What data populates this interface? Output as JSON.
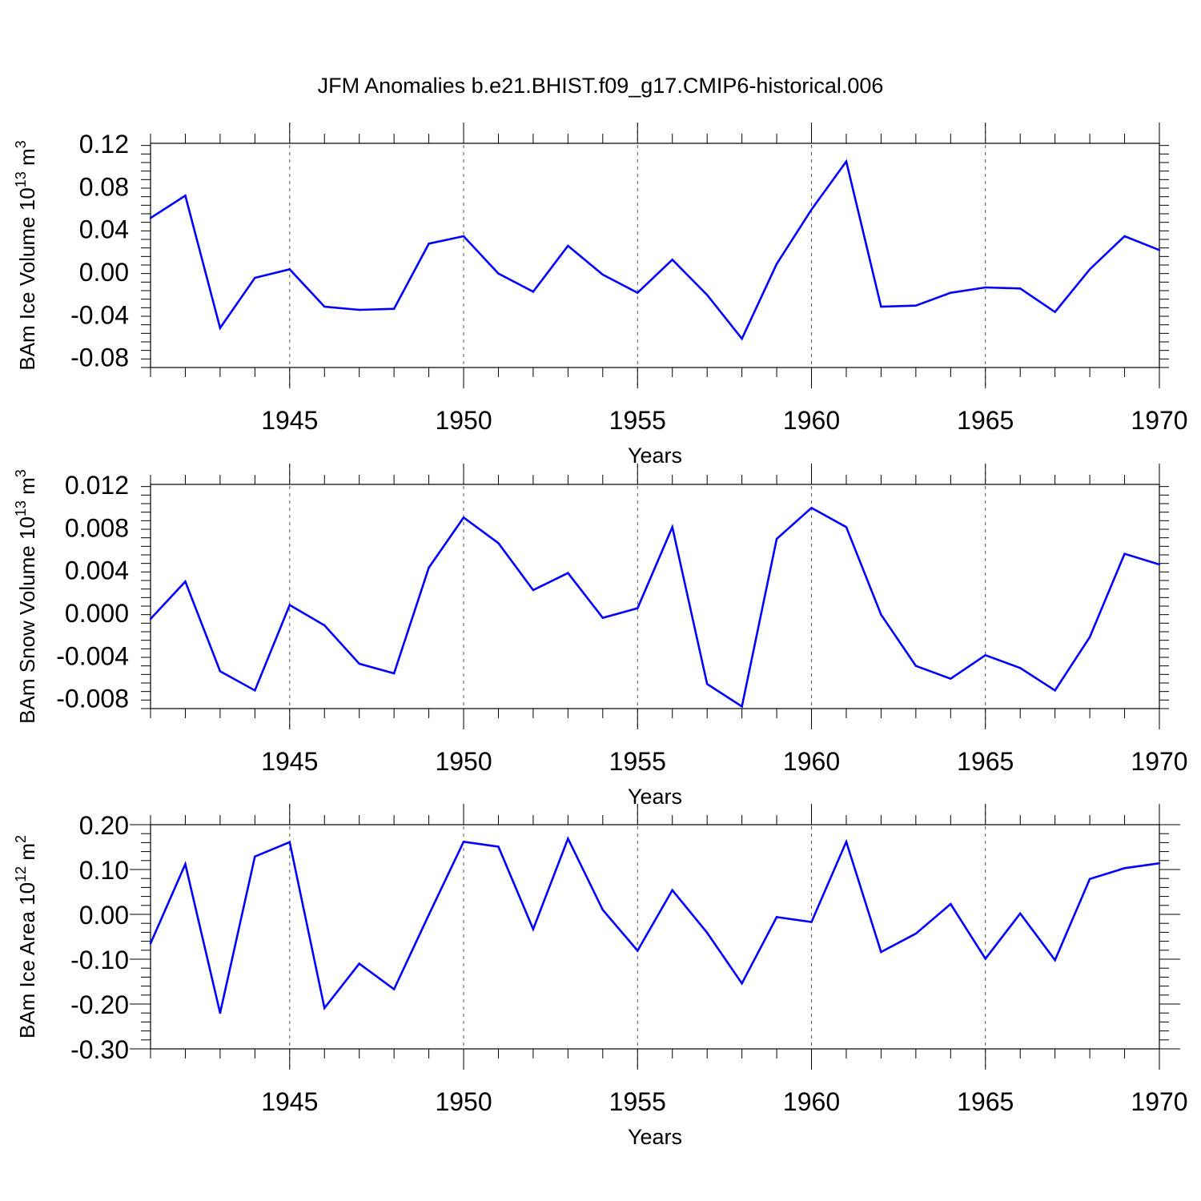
{
  "title": "JFM Anomalies b.e21.BHIST.f09_g17.CMIP6-historical.006",
  "line_color": "#0000ff",
  "chart_data": [
    {
      "type": "line",
      "xlabel": "Years",
      "ylabel": {
        "base": "BAm Ice Volume 10",
        "exp": "13",
        "unit": " m",
        "unit_exp": "3"
      },
      "xlim": [
        1941,
        1970
      ],
      "ylim": [
        -0.09,
        0.12
      ],
      "xticks": [
        1945,
        1950,
        1955,
        1960,
        1965,
        1970
      ],
      "yticks": [
        -0.08,
        -0.04,
        0.0,
        0.04,
        0.08,
        0.12
      ],
      "ytick_labels": [
        "-0.08",
        "-0.04",
        "0.00",
        "0.04",
        "0.08",
        "0.12"
      ],
      "grid": "vertical dashed at major x ticks",
      "x": [
        1941,
        1942,
        1943,
        1944,
        1945,
        1946,
        1947,
        1948,
        1949,
        1950,
        1951,
        1952,
        1953,
        1954,
        1955,
        1956,
        1957,
        1958,
        1959,
        1960,
        1961,
        1962,
        1963,
        1964,
        1965,
        1966,
        1967,
        1968,
        1969,
        1970
      ],
      "y": [
        0.05,
        0.071,
        -0.053,
        -0.006,
        0.002,
        -0.033,
        -0.036,
        -0.035,
        0.026,
        0.033,
        -0.002,
        -0.019,
        0.024,
        -0.003,
        -0.02,
        0.011,
        -0.022,
        -0.063,
        0.007,
        0.058,
        0.103,
        -0.033,
        -0.032,
        -0.02,
        -0.015,
        -0.016,
        -0.038,
        0.002,
        0.033,
        0.02
      ]
    },
    {
      "type": "line",
      "xlabel": "Years",
      "ylabel": {
        "base": "BAm Snow Volume 10",
        "exp": "13",
        "unit": " m",
        "unit_exp": "3"
      },
      "xlim": [
        1941,
        1970
      ],
      "ylim": [
        -0.009,
        0.012
      ],
      "xticks": [
        1945,
        1950,
        1955,
        1960,
        1965,
        1970
      ],
      "yticks": [
        -0.008,
        -0.004,
        0.0,
        0.004,
        0.008,
        0.012
      ],
      "ytick_labels": [
        "-0.008",
        "-0.004",
        "0.000",
        "0.004",
        "0.008",
        "0.012"
      ],
      "grid": "vertical dashed at major x ticks",
      "x": [
        1941,
        1942,
        1943,
        1944,
        1945,
        1946,
        1947,
        1948,
        1949,
        1950,
        1951,
        1952,
        1953,
        1954,
        1955,
        1956,
        1957,
        1958,
        1959,
        1960,
        1961,
        1962,
        1963,
        1964,
        1965,
        1966,
        1967,
        1968,
        1969,
        1970
      ],
      "y": [
        -0.0006,
        0.0029,
        -0.0055,
        -0.0073,
        0.0007,
        -0.0012,
        -0.0048,
        -0.0057,
        0.0042,
        0.0089,
        0.0065,
        0.0021,
        0.0037,
        -0.0005,
        0.0004,
        0.008,
        -0.0067,
        -0.0088,
        0.0069,
        0.0098,
        0.008,
        -0.0002,
        -0.005,
        -0.0062,
        -0.004,
        -0.0052,
        -0.0073,
        -0.0023,
        0.0055,
        0.0045
      ]
    },
    {
      "type": "line",
      "xlabel": "Years",
      "ylabel": {
        "base": "BAm Ice Area 10",
        "exp": "12",
        "unit": " m",
        "unit_exp": "2"
      },
      "xlim": [
        1941,
        1970
      ],
      "ylim": [
        -0.3,
        0.2
      ],
      "xticks": [
        1945,
        1950,
        1955,
        1960,
        1965,
        1970
      ],
      "yticks": [
        -0.3,
        -0.2,
        -0.1,
        0.0,
        0.1,
        0.2
      ],
      "ytick_labels": [
        "-0.30",
        "-0.20",
        "-0.10",
        "0.00",
        "0.10",
        "0.20"
      ],
      "grid": "vertical dashed at major x ticks",
      "x": [
        1941,
        1942,
        1943,
        1944,
        1945,
        1946,
        1947,
        1948,
        1949,
        1950,
        1951,
        1952,
        1953,
        1954,
        1955,
        1956,
        1957,
        1958,
        1959,
        1960,
        1961,
        1962,
        1963,
        1964,
        1965,
        1966,
        1967,
        1968,
        1969,
        1970
      ],
      "y": [
        -0.065,
        0.112,
        -0.22,
        0.129,
        0.161,
        -0.209,
        -0.11,
        -0.167,
        -0.001,
        0.162,
        0.151,
        -0.033,
        0.169,
        0.01,
        -0.081,
        0.054,
        -0.041,
        -0.154,
        -0.006,
        -0.017,
        0.162,
        -0.084,
        -0.043,
        0.023,
        -0.099,
        0.002,
        -0.102,
        0.079,
        0.103,
        0.114
      ]
    }
  ]
}
